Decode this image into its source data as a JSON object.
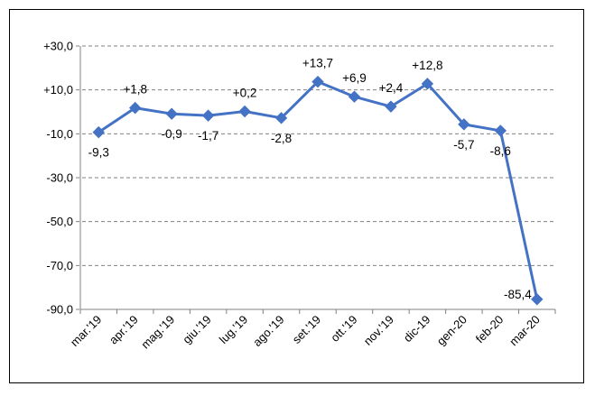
{
  "chart_data": {
    "type": "line",
    "title": "",
    "xlabel": "",
    "ylabel": "",
    "categories": [
      "mar.'19",
      "apr.'19",
      "mag.'19",
      "giu.'19",
      "lug.'19",
      "ago.'19",
      "set.'19",
      "ott.'19",
      "nov.'19",
      "dic-19",
      "gen-20",
      "feb-20",
      "mar-20"
    ],
    "series": [
      {
        "name": "",
        "values": [
          -9.3,
          1.8,
          -0.9,
          -1.7,
          0.2,
          -2.8,
          13.7,
          6.9,
          2.4,
          12.8,
          -5.7,
          -8.6,
          -85.4
        ],
        "labels": [
          "-9,3",
          "+1,8",
          "-0,9",
          "-1,7",
          "+0,2",
          "-2,8",
          "+13,7",
          "+6,9",
          "+2,4",
          "+12,8",
          "-5,7",
          "-8,6",
          "-85,4"
        ]
      }
    ],
    "label_positions": [
      "below",
      "above",
      "below",
      "below",
      "above",
      "below",
      "above",
      "above",
      "above",
      "above",
      "below",
      "below",
      "left"
    ],
    "ylim": [
      -90,
      30
    ],
    "yticks": [
      30,
      10,
      -10,
      -30,
      -50,
      -70,
      -90
    ],
    "ytick_labels": [
      "+30,0",
      "+10,0",
      "-10,0",
      "-30,0",
      "-50,0",
      "-70,0",
      "-90,0"
    ],
    "grid": true,
    "legend": "none",
    "colors": {
      "line": "#4472C4",
      "grid": "#808080",
      "axis": "#808080"
    }
  }
}
